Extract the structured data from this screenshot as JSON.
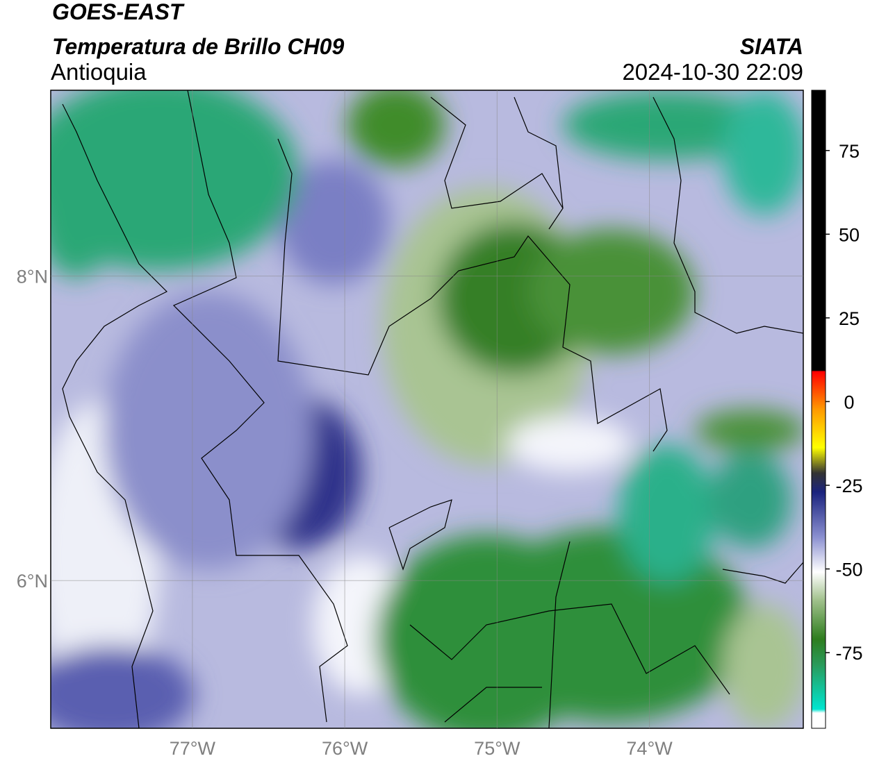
{
  "header": {
    "title": "GOES-EAST",
    "subtitle": "Temperatura de Brillo CH09",
    "region": "Antioquia",
    "source": "SIATA",
    "datetime": "2024-10-30 22:09"
  },
  "map": {
    "xlim": [
      -77.93,
      -72.99
    ],
    "ylim": [
      5.03,
      9.22
    ],
    "xticks": [
      {
        "value": -77,
        "label": "77°W"
      },
      {
        "value": -76,
        "label": "76°W"
      },
      {
        "value": -75,
        "label": "75°W"
      },
      {
        "value": -74,
        "label": "74°W"
      }
    ],
    "yticks": [
      {
        "value": 8,
        "label": "8°N"
      },
      {
        "value": 6,
        "label": "6°N"
      }
    ],
    "grid": true
  },
  "colorbar": {
    "lim": [
      -97.6,
      93
    ],
    "ticks": [
      75,
      50,
      25,
      0,
      -25,
      -50,
      -75
    ]
  }
}
